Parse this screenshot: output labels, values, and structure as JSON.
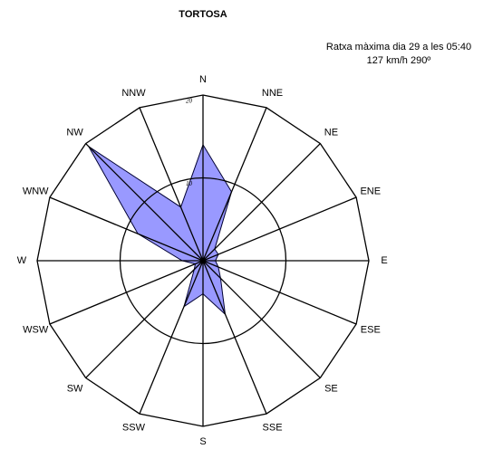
{
  "chart_data": {
    "type": "radar",
    "title": "TORTOSA",
    "annotation": [
      "Ratxa màxima dia 29 a les 05:40",
      "127 km/h 290º"
    ],
    "categories": [
      "N",
      "NNE",
      "NE",
      "ENE",
      "E",
      "ESE",
      "SE",
      "SSE",
      "S",
      "SSW",
      "SW",
      "WSW",
      "W",
      "WNW",
      "NW",
      "NNW"
    ],
    "values": [
      14,
      9,
      2,
      2,
      1.5,
      2,
      3,
      7,
      4,
      6,
      1.5,
      1,
      2.5,
      8.5,
      19.5,
      7
    ],
    "color": "#9999ff",
    "rlim": [
      0,
      20
    ],
    "rticks": [
      10,
      20
    ]
  }
}
